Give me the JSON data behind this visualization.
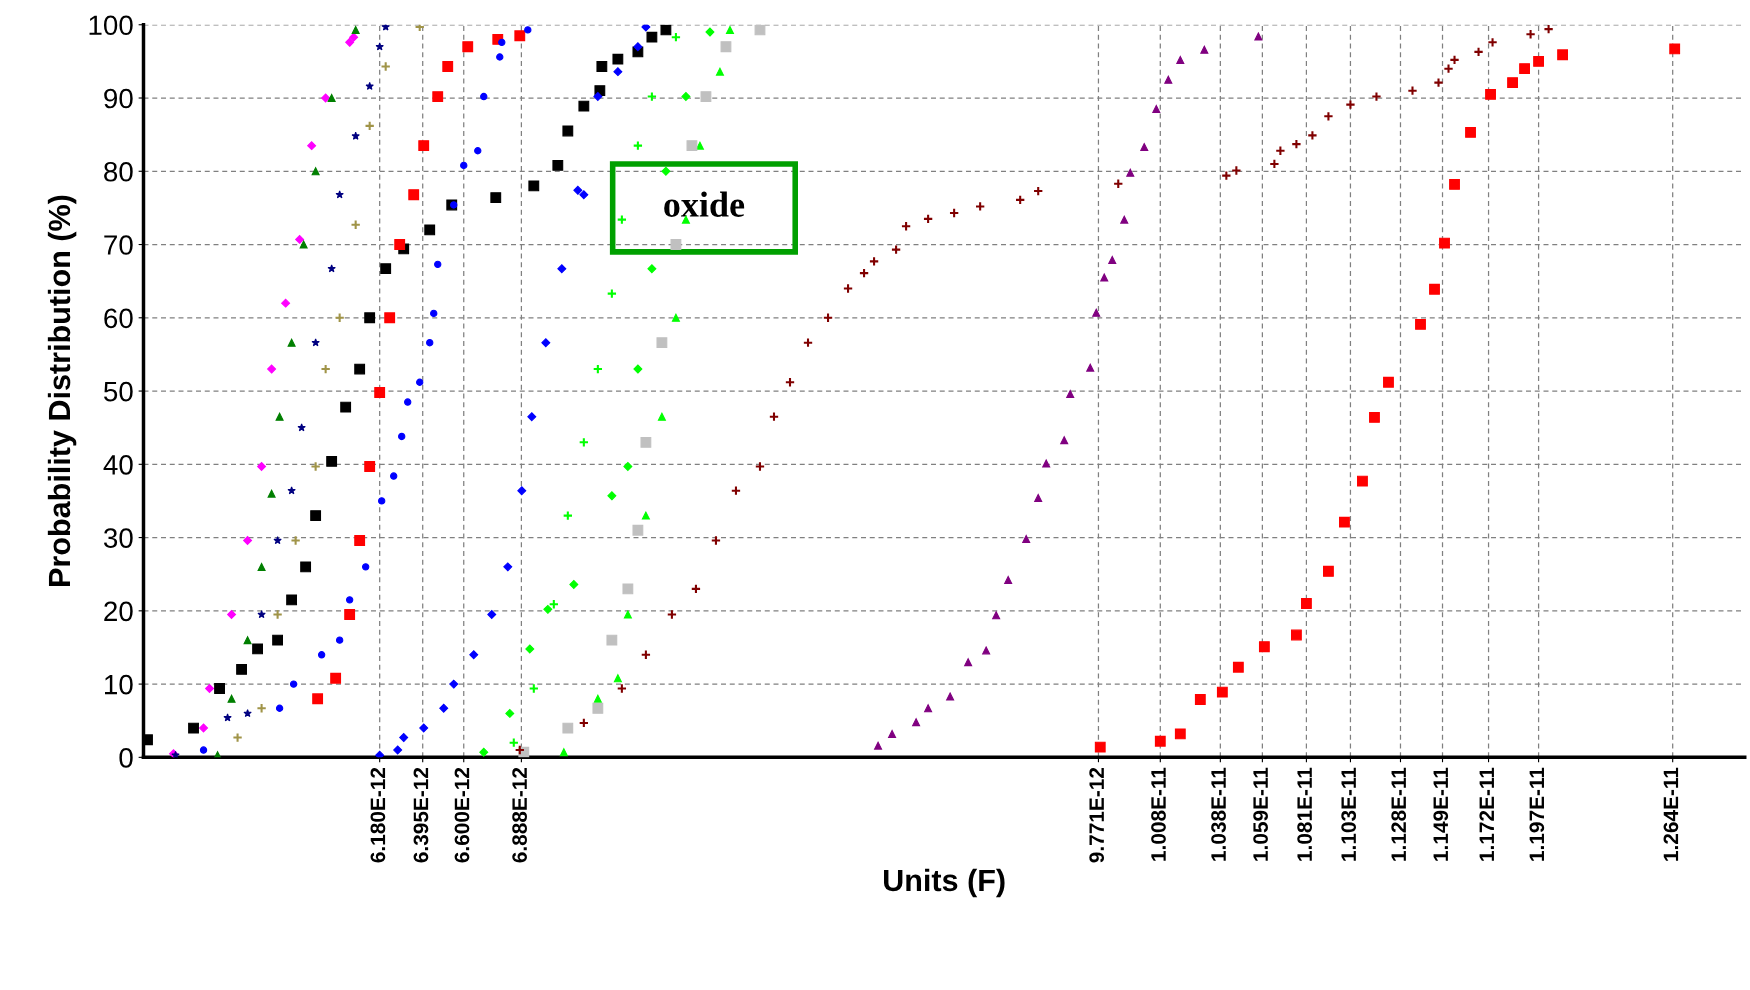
{
  "chart_data": {
    "type": "scatter",
    "xlabel": "Units (F)",
    "ylabel": "Probability Distribution (%)",
    "xlim": [
      5e-12,
      1.3e-11
    ],
    "xticks": [
      {
        "value": 6.18e-12,
        "label": "6.180E-12"
      },
      {
        "value": 6.395e-12,
        "label": "6.395E-12"
      },
      {
        "value": 6.6e-12,
        "label": "6.600E-12"
      },
      {
        "value": 6.888e-12,
        "label": "6.888E-12"
      },
      {
        "value": 9.771e-12,
        "label": "9.771E-12"
      },
      {
        "value": 1.008e-11,
        "label": "1.008E-11"
      },
      {
        "value": 1.038e-11,
        "label": "1.038E-11"
      },
      {
        "value": 1.059e-11,
        "label": "1.059E-11"
      },
      {
        "value": 1.081e-11,
        "label": "1.081E-11"
      },
      {
        "value": 1.103e-11,
        "label": "1.103E-11"
      },
      {
        "value": 1.128e-11,
        "label": "1.128E-11"
      },
      {
        "value": 1.149e-11,
        "label": "1.149E-11"
      },
      {
        "value": 1.172e-11,
        "label": "1.172E-11"
      },
      {
        "value": 1.197e-11,
        "label": "1.197E-11"
      },
      {
        "value": 1.264e-11,
        "label": "1.264E-11"
      }
    ],
    "ylim": [
      0,
      100
    ],
    "yticks": [
      0,
      10,
      20,
      30,
      40,
      50,
      60,
      70,
      80,
      90,
      100
    ],
    "grid": true,
    "legend": false,
    "annotations": [
      "oxide"
    ],
    "series": [
      {
        "color": "#ff00ff",
        "marker": "diamond",
        "x": [
          5.15e-12,
          5.3e-12,
          5.33e-12,
          5.44e-12,
          5.52e-12,
          5.59e-12,
          5.64e-12,
          5.71e-12,
          5.78e-12,
          5.84e-12,
          5.91e-12,
          6.03e-12,
          6.05e-12
        ],
        "values": [
          0.5,
          4,
          9.4,
          19.5,
          29.6,
          39.7,
          53,
          62,
          70.7,
          83.5,
          90,
          97.6,
          98.3
        ]
      },
      {
        "color": "#007f00",
        "marker": "triangle",
        "x": [
          5.37e-12,
          5.44e-12,
          5.52e-12,
          5.59e-12,
          5.64e-12,
          5.68e-12,
          5.74e-12,
          5.8e-12,
          5.86e-12,
          5.94e-12,
          6.06e-12
        ],
        "values": [
          0.3,
          8,
          16,
          26,
          36,
          46.5,
          56.6,
          70,
          80,
          90,
          99.3
        ]
      },
      {
        "color": "#000080",
        "marker": "star",
        "x": [
          5.16e-12,
          5.42e-12,
          5.52e-12,
          5.59e-12,
          5.67e-12,
          5.74e-12,
          5.79e-12,
          5.86e-12,
          5.94e-12,
          5.98e-12,
          6.06e-12,
          6.13e-12,
          6.18e-12,
          6.21e-12
        ],
        "values": [
          0.3,
          5.4,
          6,
          19.5,
          29.6,
          36.4,
          45,
          56.6,
          66.7,
          76.8,
          84.8,
          91.6,
          97,
          99.7
        ]
      },
      {
        "color": "#a09448",
        "marker": "cross",
        "x": [
          5.47e-12,
          5.59e-12,
          5.67e-12,
          5.76e-12,
          5.86e-12,
          5.91e-12,
          5.98e-12,
          6.06e-12,
          6.13e-12,
          6.21e-12,
          6.38e-12
        ],
        "values": [
          2.7,
          6.7,
          19.5,
          29.6,
          39.7,
          53,
          60,
          72.7,
          86.2,
          94.3,
          99.7
        ]
      },
      {
        "color": "#000000",
        "marker": "square",
        "x": [
          5.02e-12,
          5.25e-12,
          5.38e-12,
          5.49e-12,
          5.57e-12,
          5.67e-12,
          5.74e-12,
          5.81e-12,
          5.86e-12,
          5.94e-12,
          6.01e-12,
          6.08e-12,
          6.13e-12,
          6.21e-12,
          6.3e-12,
          6.43e-12,
          6.54e-12,
          6.76e-12,
          6.95e-12,
          7.07e-12,
          7.12e-12,
          7.2e-12,
          7.28e-12,
          7.29e-12,
          7.37e-12,
          7.47e-12,
          7.54e-12,
          7.61e-12
        ],
        "values": [
          2.4,
          4,
          9.4,
          12,
          14.8,
          16,
          21.5,
          26,
          33,
          40.4,
          47.8,
          53,
          60,
          66.7,
          69.4,
          72,
          75.4,
          76.4,
          78,
          80.8,
          85.5,
          88.9,
          91,
          94.3,
          95.3,
          96.3,
          98.3,
          99.3
        ]
      },
      {
        "color": "#ff0000",
        "marker": "square",
        "x": [
          5.87e-12,
          5.96e-12,
          6.03e-12,
          6.08e-12,
          6.13e-12,
          6.18e-12,
          6.23e-12,
          6.28e-12,
          6.35e-12,
          6.4e-12,
          6.47e-12,
          6.52e-12,
          6.62e-12,
          6.77e-12,
          6.88e-12
        ],
        "values": [
          8,
          10.8,
          19.5,
          29.6,
          39.7,
          49.8,
          60,
          70,
          76.8,
          83.5,
          90.2,
          94.3,
          97,
          98,
          98.5
        ]
      },
      {
        "color": "#0000ff",
        "marker": "circle",
        "x": [
          5.3e-12,
          5.68e-12,
          5.75e-12,
          5.89e-12,
          5.98e-12,
          6.03e-12,
          6.11e-12,
          6.19e-12,
          6.25e-12,
          6.29e-12,
          6.32e-12,
          6.38e-12,
          6.43e-12,
          6.45e-12,
          6.47e-12,
          6.55e-12,
          6.6e-12,
          6.67e-12,
          6.7e-12,
          6.78e-12,
          6.79e-12,
          6.92e-12
        ],
        "values": [
          1,
          6.7,
          10,
          14,
          16,
          21.5,
          26,
          35,
          38.4,
          43.8,
          48.5,
          51.2,
          56.6,
          60.6,
          67.3,
          75.4,
          80.8,
          82.8,
          90.2,
          95.6,
          97.6,
          99.3
        ]
      },
      {
        "color": "#0000ff",
        "marker": "diamond",
        "x": [
          6.18e-12,
          6.27e-12,
          6.3e-12,
          6.4e-12,
          6.5e-12,
          6.55e-12,
          6.65e-12,
          6.74e-12,
          6.82e-12,
          6.89e-12,
          6.94e-12,
          7.01e-12,
          7.09e-12,
          7.17e-12,
          7.2e-12,
          7.27e-12,
          7.37e-12,
          7.47e-12,
          7.51e-12
        ],
        "values": [
          0.3,
          1,
          2.7,
          4,
          6.7,
          10,
          14,
          19.5,
          26,
          36.4,
          46.5,
          56.6,
          66.7,
          77.4,
          76.8,
          90.2,
          93.6,
          97,
          99.7
        ]
      },
      {
        "color": "#00ff00",
        "marker": "cross",
        "x": [
          6.85e-12,
          6.95e-12,
          7.05e-12,
          7.12e-12,
          7.2e-12,
          7.27e-12,
          7.34e-12,
          7.39e-12,
          7.47e-12,
          7.54e-12,
          7.66e-12
        ],
        "values": [
          2,
          9.4,
          20.9,
          33,
          43,
          53,
          63.3,
          73.4,
          83.5,
          90.2,
          98.3
        ]
      },
      {
        "color": "#00ff00",
        "marker": "diamond",
        "x": [
          6.7e-12,
          6.83e-12,
          6.93e-12,
          7.02e-12,
          7.15e-12,
          7.34e-12,
          7.42e-12,
          7.47e-12,
          7.54e-12,
          7.61e-12,
          7.71e-12,
          7.83e-12
        ],
        "values": [
          0.7,
          6,
          14.8,
          20.2,
          23.6,
          35.7,
          39.7,
          53,
          66.7,
          80,
          90.2,
          99
        ]
      },
      {
        "color": "#00ff00",
        "marker": "triangle",
        "x": [
          7.1e-12,
          7.27e-12,
          7.37e-12,
          7.42e-12,
          7.51e-12,
          7.59e-12,
          7.66e-12,
          7.71e-12,
          7.78e-12,
          7.88e-12,
          7.93e-12
        ],
        "values": [
          0.7,
          8,
          10.8,
          19.5,
          33,
          46.5,
          60,
          73.4,
          83.5,
          93.6,
          99.3
        ]
      },
      {
        "color": "#c0c0c0",
        "marker": "square",
        "x": [
          6.9e-12,
          7.12e-12,
          7.27e-12,
          7.34e-12,
          7.42e-12,
          7.47e-12,
          7.51e-12,
          7.59e-12,
          7.66e-12,
          7.74e-12,
          7.81e-12,
          7.91e-12,
          8.08e-12
        ],
        "values": [
          0.7,
          4,
          6.7,
          16,
          23,
          31,
          43,
          56.6,
          70,
          83.5,
          90.2,
          97,
          99.3
        ]
      },
      {
        "color": "#800000",
        "marker": "cross",
        "x": [
          6.88e-12,
          7.2e-12,
          7.39e-12,
          7.51e-12,
          7.64e-12,
          7.76e-12,
          7.86e-12,
          7.96e-12,
          8.08e-12,
          8.15e-12,
          8.23e-12,
          8.32e-12,
          8.42e-12,
          8.52e-12,
          8.6e-12,
          8.65e-12,
          8.76e-12,
          8.81e-12,
          8.92e-12,
          9.05e-12,
          9.18e-12,
          9.38e-12,
          9.47e-12,
          9.87e-12,
          1.041e-11,
          1.046e-11,
          1.065e-11,
          1.068e-11,
          1.076e-11,
          1.084e-11,
          1.092e-11,
          1.103e-11,
          1.116e-11,
          1.134e-11,
          1.147e-11,
          1.152e-11,
          1.155e-11,
          1.167e-11,
          1.174e-11,
          1.193e-11,
          1.202e-11
        ],
        "values": [
          1,
          4.7,
          9.4,
          14,
          19.5,
          23,
          29.6,
          36.4,
          39.7,
          46.5,
          51.2,
          56.6,
          60,
          64,
          66.1,
          67.7,
          69.3,
          72.5,
          73.5,
          74.3,
          75.2,
          76.1,
          77.3,
          78.3,
          79.4,
          80.1,
          81,
          82.8,
          83.7,
          84.9,
          87.5,
          89.1,
          90.2,
          91,
          92.1,
          94,
          95.2,
          96.3,
          97.6,
          98.7,
          99.4
        ]
      },
      {
        "color": "#800080",
        "marker": "triangle",
        "x": [
          8.67e-12,
          8.74e-12,
          8.86e-12,
          8.92e-12,
          9.03e-12,
          9.12e-12,
          9.21e-12,
          9.26e-12,
          9.32e-12,
          9.41e-12,
          9.47e-12,
          9.51e-12,
          9.6e-12,
          9.63e-12,
          9.73e-12,
          9.76e-12,
          9.8e-12,
          9.84e-12,
          9.9e-12,
          9.93e-12,
          1e-11,
          1.006e-11,
          1.012e-11,
          1.018e-11,
          1.03e-11,
          1.057e-11
        ],
        "values": [
          1.6,
          3.2,
          4.8,
          6.7,
          8.3,
          13,
          14.6,
          19.4,
          24.2,
          29.8,
          35.4,
          40.1,
          43.3,
          49.6,
          53.2,
          60.7,
          65.5,
          67.9,
          73.4,
          79.8,
          83.3,
          88.5,
          92.5,
          95.2,
          96.6,
          98.4
        ]
      },
      {
        "color": "#ff0000",
        "marker": "square",
        "x": [
          9.78e-12,
          1.008e-11,
          1.018e-11,
          1.028e-11,
          1.039e-11,
          1.047e-11,
          1.06e-11,
          1.076e-11,
          1.081e-11,
          1.092e-11,
          1.1e-11,
          1.109e-11,
          1.115e-11,
          1.122e-11,
          1.138e-11,
          1.145e-11,
          1.15e-11,
          1.155e-11,
          1.163e-11,
          1.173e-11,
          1.184e-11,
          1.19e-11,
          1.197e-11,
          1.209e-11,
          1.265e-11
        ],
        "values": [
          1.4,
          2.2,
          3.2,
          7.9,
          8.9,
          12.3,
          15.1,
          16.7,
          21,
          25.4,
          32.1,
          37.7,
          46.4,
          51.2,
          59.1,
          63.9,
          70.2,
          78.2,
          85.3,
          90.5,
          92.1,
          94,
          95,
          95.9,
          96.7
        ]
      }
    ]
  }
}
